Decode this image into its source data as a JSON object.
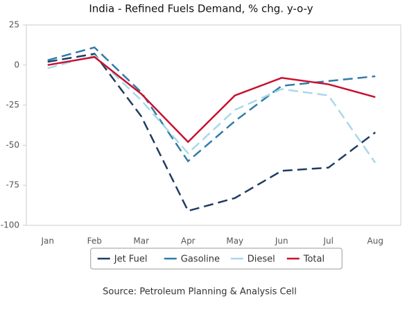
{
  "chart_data": {
    "type": "line",
    "title": "India - Refined Fuels Demand, % chg. y-o-y",
    "categories": [
      "Jan",
      "Feb",
      "Mar",
      "Apr",
      "May",
      "Jun",
      "Jul",
      "Aug"
    ],
    "series": [
      {
        "name": "Jet Fuel",
        "color": "#1f3b63",
        "dashed": true,
        "values": [
          2,
          7,
          -32,
          -91,
          -83,
          -66,
          -64,
          -42
        ]
      },
      {
        "name": "Gasoline",
        "color": "#2f7ca8",
        "dashed": true,
        "values": [
          3,
          11,
          -17,
          -60,
          -35,
          -13,
          -10,
          -7
        ]
      },
      {
        "name": "Diesel",
        "color": "#a8d8ea",
        "dashed": true,
        "values": [
          -2,
          6,
          -22,
          -55,
          -28,
          -15,
          -19,
          -61
        ]
      },
      {
        "name": "Total",
        "color": "#c8102e",
        "dashed": false,
        "values": [
          0,
          5,
          -18,
          -48,
          -19,
          -8,
          -12,
          -20
        ]
      }
    ],
    "ylim": [
      -100,
      25
    ],
    "yticks": [
      25,
      0,
      -25,
      -50,
      -75,
      -100
    ],
    "legend": "bottom",
    "source": "Source: Petroleum Planning & Analysis Cell"
  }
}
